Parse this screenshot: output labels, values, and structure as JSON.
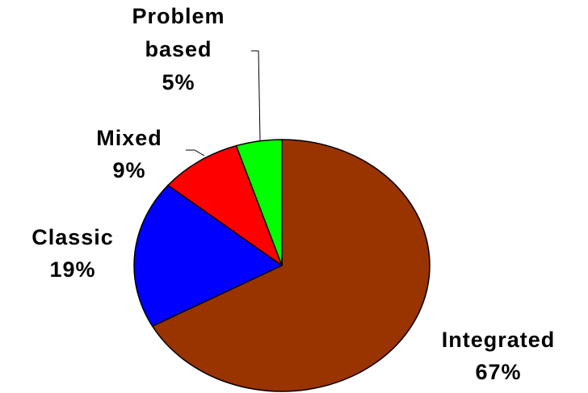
{
  "chart_data": {
    "type": "pie",
    "title": "",
    "start_angle_deg": 0,
    "direction": "clockwise",
    "slices": [
      {
        "name": "Integrated",
        "value": 67,
        "percent_label": "67%",
        "color": "#993300",
        "label_lines": [
          "Integrated",
          "67%"
        ]
      },
      {
        "name": "Classic",
        "value": 19,
        "percent_label": "19%",
        "color": "#0000ff",
        "label_lines": [
          "Classic",
          "19%"
        ]
      },
      {
        "name": "Mixed",
        "value": 9,
        "percent_label": "9%",
        "color": "#ff0000",
        "label_lines": [
          "Mixed",
          "9%"
        ]
      },
      {
        "name": "Problem based",
        "value": 5,
        "percent_label": "5%",
        "color": "#00ff00",
        "label_lines": [
          "Problem",
          "based",
          "5%"
        ]
      }
    ],
    "slice_outline_color": "#000000",
    "leader_line_color": "#000000"
  }
}
